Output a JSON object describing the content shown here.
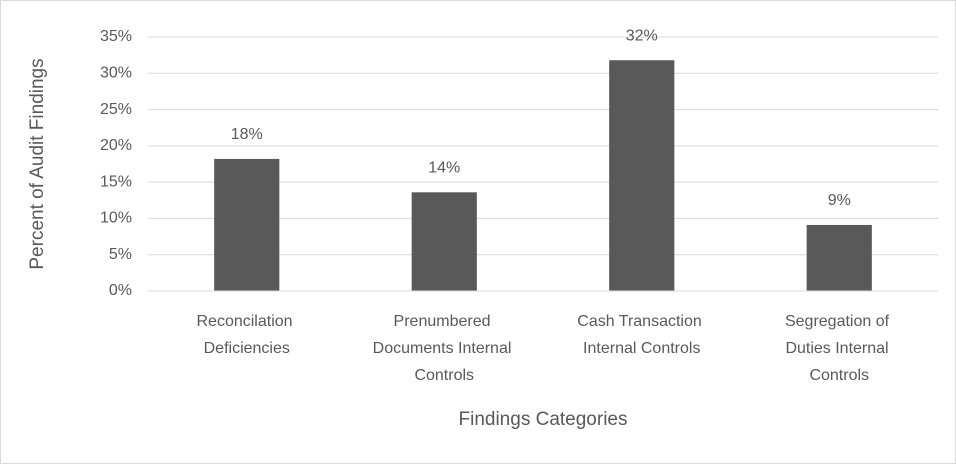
{
  "chart_data": {
    "type": "bar",
    "categories": [
      "Reconcilation Deficiencies",
      "Prenumbered Documents Internal Controls",
      "Cash Transaction Internal Controls",
      "Segregation of Duties Internal Controls"
    ],
    "values": [
      18.2,
      13.6,
      31.8,
      9.1
    ],
    "value_labels": [
      "18%",
      "14%",
      "32%",
      "9%"
    ],
    "color": "#595959",
    "x_label": "Findings Categories",
    "y_label": "Percent of Audit Findings",
    "ylim": [
      0,
      35
    ],
    "yticks": [
      {
        "value": 0,
        "label": "0%"
      },
      {
        "value": 5,
        "label": "5%"
      },
      {
        "value": 10,
        "label": "10%"
      },
      {
        "value": 15,
        "label": "15%"
      },
      {
        "value": 20,
        "label": "20%"
      },
      {
        "value": 25,
        "label": "25%"
      },
      {
        "value": 30,
        "label": "30%"
      },
      {
        "value": 35,
        "label": "35%"
      }
    ],
    "grid": true
  }
}
